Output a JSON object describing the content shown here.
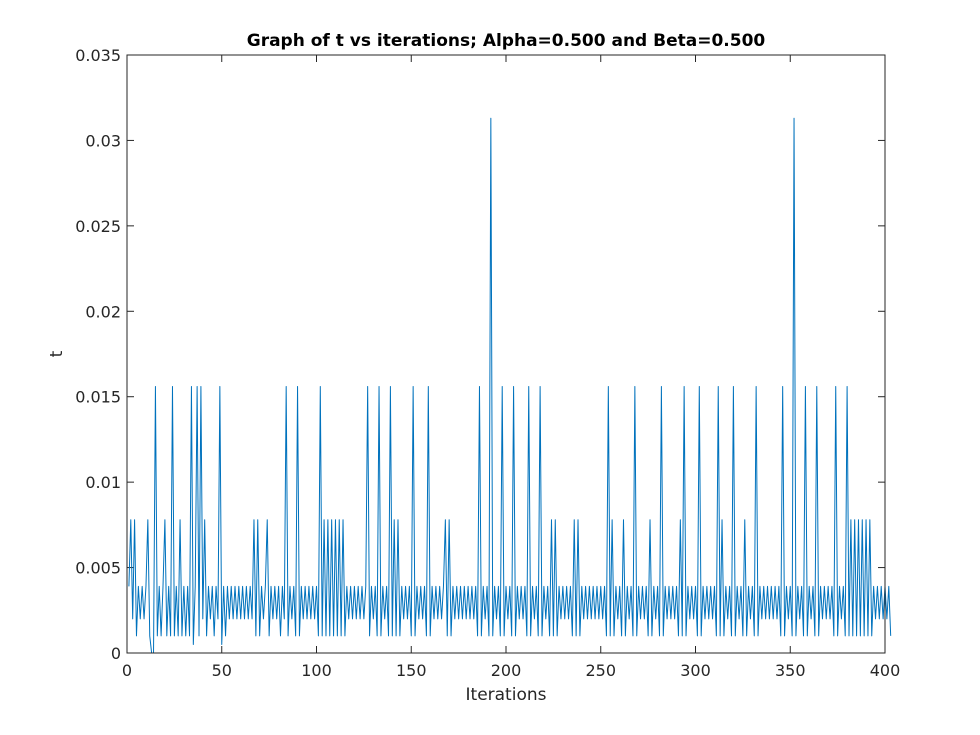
{
  "chart_data": {
    "type": "line",
    "title": "Graph of t vs iterations; Alpha=0.500 and Beta=0.500",
    "xlabel": "Iterations",
    "ylabel": "t",
    "xlim": [
      0,
      400
    ],
    "ylim": [
      0,
      0.035
    ],
    "xticks": [
      0,
      50,
      100,
      150,
      200,
      250,
      300,
      350,
      400
    ],
    "xtick_labels": [
      "0",
      "50",
      "100",
      "150",
      "200",
      "250",
      "300",
      "350",
      "400"
    ],
    "yticks": [
      0,
      0.005,
      0.01,
      0.015,
      0.02,
      0.025,
      0.03,
      0.035
    ],
    "ytick_labels": [
      "0",
      "0.005",
      "0.01",
      "0.015",
      "0.02",
      "0.025",
      "0.03",
      "0.035"
    ],
    "grid": false,
    "line_color": "#0072BD",
    "series": [
      {
        "x_start": 1,
        "x_step": 1,
        "values": [
          0.0039,
          0.0078,
          0.002,
          0.0078,
          0.001,
          0.0039,
          0.002,
          0.0039,
          0.002,
          0.0039,
          0.0078,
          0.001,
          0.0,
          0.0,
          0.0156,
          0.001,
          0.0039,
          0.001,
          0.0039,
          0.0078,
          0.001,
          0.0039,
          0.001,
          0.0156,
          0.001,
          0.0039,
          0.001,
          0.0078,
          0.001,
          0.0039,
          0.001,
          0.0039,
          0.001,
          0.0156,
          0.0005,
          0.0039,
          0.0156,
          0.001,
          0.0156,
          0.002,
          0.0078,
          0.001,
          0.0039,
          0.002,
          0.0039,
          0.001,
          0.0039,
          0.002,
          0.0156,
          0.0005,
          0.0039,
          0.001,
          0.0039,
          0.002,
          0.0039,
          0.002,
          0.0039,
          0.002,
          0.0039,
          0.002,
          0.0039,
          0.002,
          0.0039,
          0.002,
          0.0039,
          0.002,
          0.0078,
          0.001,
          0.0078,
          0.001,
          0.0039,
          0.002,
          0.0039,
          0.0078,
          0.001,
          0.0039,
          0.002,
          0.0039,
          0.002,
          0.0039,
          0.001,
          0.0039,
          0.002,
          0.0156,
          0.001,
          0.0039,
          0.002,
          0.0039,
          0.001,
          0.0156,
          0.001,
          0.0039,
          0.002,
          0.0039,
          0.002,
          0.0039,
          0.002,
          0.0039,
          0.002,
          0.0039,
          0.001,
          0.0156,
          0.001,
          0.0078,
          0.001,
          0.0078,
          0.001,
          0.0078,
          0.001,
          0.0078,
          0.001,
          0.0078,
          0.001,
          0.0078,
          0.001,
          0.0039,
          0.002,
          0.0039,
          0.002,
          0.0039,
          0.002,
          0.0039,
          0.002,
          0.0039,
          0.002,
          0.0039,
          0.0156,
          0.001,
          0.0039,
          0.002,
          0.0039,
          0.001,
          0.0156,
          0.001,
          0.0039,
          0.002,
          0.0039,
          0.001,
          0.0156,
          0.001,
          0.0078,
          0.001,
          0.0078,
          0.001,
          0.0039,
          0.002,
          0.0039,
          0.002,
          0.0039,
          0.001,
          0.0156,
          0.001,
          0.0039,
          0.002,
          0.0039,
          0.002,
          0.0039,
          0.001,
          0.0156,
          0.001,
          0.0039,
          0.002,
          0.0039,
          0.002,
          0.0039,
          0.002,
          0.0039,
          0.0078,
          0.001,
          0.0078,
          0.001,
          0.0039,
          0.002,
          0.0039,
          0.002,
          0.0039,
          0.002,
          0.0039,
          0.002,
          0.0039,
          0.002,
          0.0039,
          0.002,
          0.0039,
          0.001,
          0.0156,
          0.001,
          0.0039,
          0.002,
          0.0039,
          0.001,
          0.0313,
          0.001,
          0.0039,
          0.002,
          0.0039,
          0.001,
          0.0156,
          0.001,
          0.0039,
          0.002,
          0.0039,
          0.001,
          0.0156,
          0.001,
          0.0039,
          0.002,
          0.0039,
          0.002,
          0.0039,
          0.001,
          0.0156,
          0.001,
          0.0039,
          0.002,
          0.0039,
          0.001,
          0.0156,
          0.001,
          0.0039,
          0.002,
          0.0039,
          0.001,
          0.0078,
          0.001,
          0.0078,
          0.001,
          0.0039,
          0.002,
          0.0039,
          0.002,
          0.0039,
          0.002,
          0.0039,
          0.001,
          0.0078,
          0.001,
          0.0078,
          0.001,
          0.0039,
          0.002,
          0.0039,
          0.002,
          0.0039,
          0.002,
          0.0039,
          0.002,
          0.0039,
          0.002,
          0.0039,
          0.002,
          0.0039,
          0.001,
          0.0156,
          0.001,
          0.0078,
          0.001,
          0.0039,
          0.002,
          0.0039,
          0.001,
          0.0078,
          0.001,
          0.0039,
          0.002,
          0.0039,
          0.001,
          0.0156,
          0.001,
          0.0039,
          0.002,
          0.0039,
          0.002,
          0.0039,
          0.001,
          0.0078,
          0.001,
          0.0039,
          0.002,
          0.0039,
          0.001,
          0.0156,
          0.001,
          0.0039,
          0.002,
          0.0039,
          0.002,
          0.0039,
          0.002,
          0.0039,
          0.001,
          0.0078,
          0.001,
          0.0156,
          0.001,
          0.0039,
          0.002,
          0.0039,
          0.002,
          0.0039,
          0.001,
          0.0156,
          0.001,
          0.0039,
          0.002,
          0.0039,
          0.002,
          0.0039,
          0.002,
          0.0039,
          0.001,
          0.0156,
          0.001,
          0.0078,
          0.001,
          0.0039,
          0.002,
          0.0039,
          0.001,
          0.0156,
          0.001,
          0.0039,
          0.002,
          0.0039,
          0.001,
          0.0078,
          0.001,
          0.0039,
          0.002,
          0.0039,
          0.001,
          0.0156,
          0.001,
          0.0039,
          0.002,
          0.0039,
          0.002,
          0.0039,
          0.002,
          0.0039,
          0.002,
          0.0039,
          0.002,
          0.0039,
          0.001,
          0.0156,
          0.001,
          0.0039,
          0.002,
          0.0039,
          0.001,
          0.0313,
          0.001,
          0.0039,
          0.002,
          0.0039,
          0.001,
          0.0156,
          0.001,
          0.0039,
          0.002,
          0.0039,
          0.001,
          0.0156,
          0.001,
          0.0039,
          0.002,
          0.0039,
          0.002,
          0.0039,
          0.002,
          0.0039,
          0.001,
          0.0156,
          0.001,
          0.0039,
          0.002,
          0.0039,
          0.001,
          0.0156,
          0.001,
          0.0078,
          0.001,
          0.0078,
          0.001,
          0.0078,
          0.001,
          0.0078,
          0.001,
          0.0078,
          0.001,
          0.0078,
          0.001,
          0.0039,
          0.002,
          0.0039,
          0.002,
          0.0039,
          0.002,
          0.0039,
          0.002,
          0.0039,
          0.001
        ]
      }
    ]
  }
}
